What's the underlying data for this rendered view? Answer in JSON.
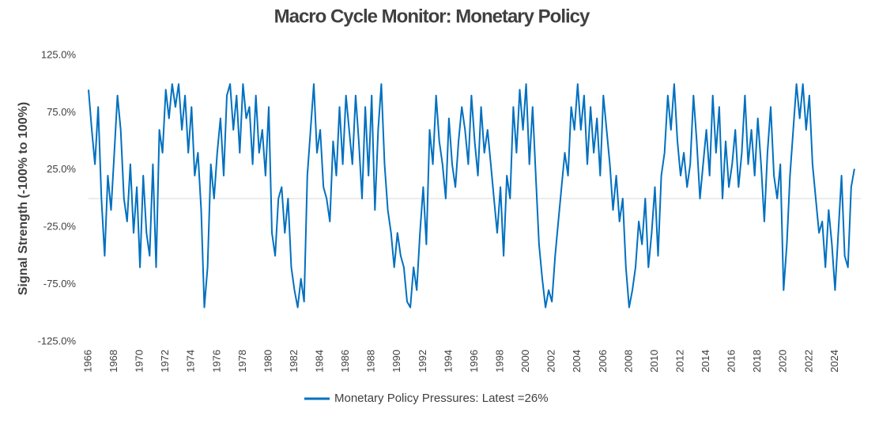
{
  "chart_data": {
    "type": "line",
    "title": "Macro Cycle Monitor: Monetary Policy",
    "y_label": "Signal Strength (-100% to 100%)",
    "xlim": [
      1966,
      2026
    ],
    "xticks": [
      1966,
      1968,
      1970,
      1972,
      1974,
      1976,
      1978,
      1980,
      1982,
      1984,
      1986,
      1988,
      1990,
      1992,
      1994,
      1996,
      1998,
      2000,
      2002,
      2004,
      2006,
      2008,
      2010,
      2012,
      2014,
      2016,
      2018,
      2020,
      2022,
      2024
    ],
    "ylim": [
      -125,
      125
    ],
    "yticks": [
      {
        "value": -125,
        "label": "-125.0%"
      },
      {
        "value": -75,
        "label": "-75.0%"
      },
      {
        "value": -25,
        "label": "-25.0%"
      },
      {
        "value": 25,
        "label": "25.0%"
      },
      {
        "value": 75,
        "label": "75.0%"
      },
      {
        "value": 125,
        "label": "125.0%"
      }
    ],
    "grid": false,
    "legend": "bottom",
    "x": [
      1966,
      1966.25,
      1966.5,
      1966.75,
      1967,
      1967.25,
      1967.5,
      1967.75,
      1968,
      1968.25,
      1968.5,
      1968.75,
      1969,
      1969.25,
      1969.5,
      1969.75,
      1970,
      1970.25,
      1970.5,
      1970.75,
      1971,
      1971.25,
      1971.5,
      1971.75,
      1972,
      1972.25,
      1972.5,
      1972.75,
      1973,
      1973.25,
      1973.5,
      1973.75,
      1974,
      1974.25,
      1974.5,
      1974.75,
      1975,
      1975.25,
      1975.5,
      1975.75,
      1976,
      1976.25,
      1976.5,
      1976.75,
      1977,
      1977.25,
      1977.5,
      1977.75,
      1978,
      1978.25,
      1978.5,
      1978.75,
      1979,
      1979.25,
      1979.5,
      1979.75,
      1980,
      1980.25,
      1980.5,
      1980.75,
      1981,
      1981.25,
      1981.5,
      1981.75,
      1982,
      1982.25,
      1982.5,
      1982.75,
      1983,
      1983.25,
      1983.5,
      1983.75,
      1984,
      1984.25,
      1984.5,
      1984.75,
      1985,
      1985.25,
      1985.5,
      1985.75,
      1986,
      1986.25,
      1986.5,
      1986.75,
      1987,
      1987.25,
      1987.5,
      1987.75,
      1988,
      1988.25,
      1988.5,
      1988.75,
      1989,
      1989.25,
      1989.5,
      1989.75,
      1990,
      1990.25,
      1990.5,
      1990.75,
      1991,
      1991.25,
      1991.5,
      1991.75,
      1992,
      1992.25,
      1992.5,
      1992.75,
      1993,
      1993.25,
      1993.5,
      1993.75,
      1994,
      1994.25,
      1994.5,
      1994.75,
      1995,
      1995.25,
      1995.5,
      1995.75,
      1996,
      1996.25,
      1996.5,
      1996.75,
      1997,
      1997.25,
      1997.5,
      1997.75,
      1998,
      1998.25,
      1998.5,
      1998.75,
      1999,
      1999.25,
      1999.5,
      1999.75,
      2000,
      2000.25,
      2000.5,
      2000.75,
      2001,
      2001.25,
      2001.5,
      2001.75,
      2002,
      2002.25,
      2002.5,
      2002.75,
      2003,
      2003.25,
      2003.5,
      2003.75,
      2004,
      2004.25,
      2004.5,
      2004.75,
      2005,
      2005.25,
      2005.5,
      2005.75,
      2006,
      2006.25,
      2006.5,
      2006.75,
      2007,
      2007.25,
      2007.5,
      2007.75,
      2008,
      2008.25,
      2008.5,
      2008.75,
      2009,
      2009.25,
      2009.5,
      2009.75,
      2010,
      2010.25,
      2010.5,
      2010.75,
      2011,
      2011.25,
      2011.5,
      2011.75,
      2012,
      2012.25,
      2012.5,
      2012.75,
      2013,
      2013.25,
      2013.5,
      2013.75,
      2014,
      2014.25,
      2014.5,
      2014.75,
      2015,
      2015.25,
      2015.5,
      2015.75,
      2016,
      2016.25,
      2016.5,
      2016.75,
      2017,
      2017.25,
      2017.5,
      2017.75,
      2018,
      2018.25,
      2018.5,
      2018.75,
      2019,
      2019.25,
      2019.5,
      2019.75,
      2020,
      2020.25,
      2020.5,
      2020.75,
      2021,
      2021.25,
      2021.5,
      2021.75,
      2022,
      2022.25,
      2022.5,
      2022.75,
      2023,
      2023.25,
      2023.5,
      2023.75,
      2024,
      2024.25,
      2024.5,
      2024.75,
      2025,
      2025.25,
      2025.5
    ],
    "series": [
      {
        "name": "Monetary Policy Pressures: Latest =26%",
        "color": "#0070c0",
        "values": [
          95,
          60,
          30,
          80,
          0,
          -50,
          20,
          -10,
          40,
          90,
          60,
          0,
          -20,
          30,
          -30,
          10,
          -60,
          20,
          -30,
          -50,
          30,
          -60,
          60,
          40,
          95,
          70,
          100,
          80,
          100,
          60,
          90,
          40,
          80,
          20,
          40,
          -10,
          -95,
          -60,
          30,
          0,
          40,
          70,
          20,
          90,
          100,
          60,
          90,
          40,
          100,
          70,
          80,
          30,
          90,
          40,
          60,
          20,
          80,
          -30,
          -50,
          0,
          10,
          -30,
          0,
          -60,
          -80,
          -95,
          -70,
          -90,
          20,
          60,
          100,
          40,
          60,
          10,
          0,
          -20,
          50,
          20,
          80,
          30,
          90,
          60,
          30,
          90,
          50,
          0,
          80,
          20,
          90,
          -10,
          60,
          100,
          30,
          -10,
          -30,
          -60,
          -30,
          -50,
          -60,
          -90,
          -95,
          -60,
          -80,
          -30,
          10,
          -40,
          60,
          30,
          90,
          50,
          30,
          0,
          70,
          30,
          10,
          50,
          80,
          60,
          30,
          90,
          50,
          20,
          80,
          40,
          60,
          30,
          0,
          -30,
          10,
          -50,
          20,
          0,
          80,
          40,
          95,
          60,
          100,
          30,
          80,
          20,
          -40,
          -70,
          -95,
          -80,
          -90,
          -50,
          -20,
          10,
          40,
          20,
          80,
          60,
          100,
          60,
          90,
          30,
          80,
          40,
          70,
          20,
          90,
          60,
          30,
          -10,
          20,
          -20,
          0,
          -60,
          -95,
          -80,
          -60,
          -20,
          -40,
          0,
          -60,
          -30,
          10,
          -50,
          20,
          40,
          90,
          60,
          100,
          50,
          20,
          40,
          10,
          30,
          90,
          50,
          0,
          30,
          60,
          20,
          90,
          40,
          80,
          0,
          50,
          10,
          30,
          60,
          10,
          40,
          90,
          30,
          60,
          20,
          70,
          30,
          -20,
          40,
          80,
          20,
          0,
          30,
          -80,
          -40,
          20,
          60,
          100,
          70,
          100,
          60,
          90,
          30,
          0,
          -30,
          -20,
          -60,
          -10,
          -40,
          -80,
          -30,
          20,
          -50,
          -60,
          10,
          26
        ]
      }
    ]
  }
}
